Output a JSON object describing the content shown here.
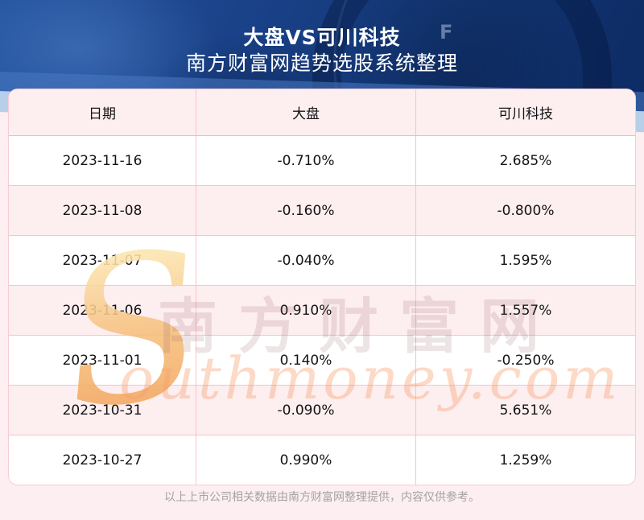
{
  "banner": {
    "title": "大盘VS可川科技",
    "subtitle": "南方财富网趋势选股系统整理",
    "gauge_letter": "F"
  },
  "table": {
    "columns": [
      "日期",
      "大盘",
      "可川科技"
    ],
    "rows": [
      [
        "2023-11-16",
        "-0.710%",
        "2.685%"
      ],
      [
        "2023-11-08",
        "-0.160%",
        "-0.800%"
      ],
      [
        "2023-11-07",
        "-0.040%",
        "1.595%"
      ],
      [
        "2023-11-06",
        "0.910%",
        "1.557%"
      ],
      [
        "2023-11-01",
        "0.140%",
        "-0.250%"
      ],
      [
        "2023-10-31",
        "-0.090%",
        "5.651%"
      ],
      [
        "2023-10-27",
        "0.990%",
        "1.259%"
      ]
    ]
  },
  "watermark": {
    "swoosh": "S",
    "cn_text": "南方财富网",
    "en_text": "outhmoney.com"
  },
  "footer": {
    "disclaimer": "以上上市公司相关数据由南方财富网整理提供，内容仅供参考。"
  },
  "colors": {
    "banner_blue": "#16407f",
    "accent_stripe_light_blue": "#b7cfe9",
    "page_pink": "#fdeef1",
    "table_header_pink": "#fdeef0",
    "table_border_pink": "#f5c3cd",
    "watermark_orange": "#f2a55c",
    "watermark_rose": "#8c555c",
    "footer_gray": "#a3a3a3"
  },
  "chart_data": {
    "type": "table",
    "title": "大盘VS可川科技",
    "subtitle": "南方财富网趋势选股系统整理",
    "columns": [
      "日期",
      "大盘",
      "可川科技"
    ],
    "categories": [
      "2023-11-16",
      "2023-11-08",
      "2023-11-07",
      "2023-11-06",
      "2023-11-01",
      "2023-10-31",
      "2023-10-27"
    ],
    "series": [
      {
        "name": "大盘",
        "unit": "%",
        "values": [
          -0.71,
          -0.16,
          -0.04,
          0.91,
          0.14,
          -0.09,
          0.99
        ]
      },
      {
        "name": "可川科技",
        "unit": "%",
        "values": [
          2.685,
          -0.8,
          1.595,
          1.557,
          -0.25,
          5.651,
          1.259
        ]
      }
    ]
  }
}
